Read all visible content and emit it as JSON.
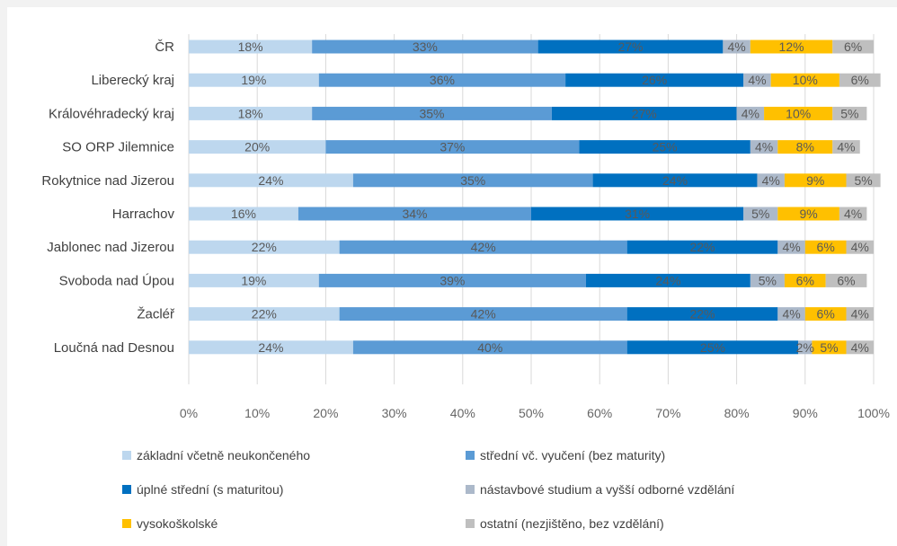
{
  "chart_data": {
    "type": "bar",
    "orientation": "horizontal",
    "stacked": true,
    "categories": [
      "ČR",
      "Liberecký kraj",
      "Královéhradecký kraj",
      "SO ORP Jilemnice",
      "Rokytnice nad Jizerou",
      "Harrachov",
      "Jablonec nad Jizerou",
      "Svoboda nad Úpou",
      "Žacléř",
      "Loučná nad Desnou"
    ],
    "series": [
      {
        "name": "základní včetně neukončeného",
        "color": "#bdd7ee",
        "values": [
          18,
          19,
          18,
          20,
          24,
          16,
          22,
          19,
          22,
          24
        ]
      },
      {
        "name": "střední vč. vyučení (bez maturity)",
        "color": "#5b9bd5",
        "values": [
          33,
          36,
          35,
          37,
          35,
          34,
          42,
          39,
          42,
          40
        ]
      },
      {
        "name": "úplné střední (s maturitou)",
        "color": "#0070c0",
        "values": [
          27,
          26,
          27,
          25,
          24,
          31,
          22,
          24,
          22,
          25
        ]
      },
      {
        "name": "nástavbové studium a vyšší odborné vzdělání",
        "color": "#acb9ca",
        "values": [
          4,
          4,
          4,
          4,
          4,
          5,
          4,
          5,
          4,
          2
        ]
      },
      {
        "name": "vysokoškolské",
        "color": "#ffc000",
        "values": [
          12,
          10,
          10,
          8,
          9,
          9,
          6,
          6,
          6,
          5
        ]
      },
      {
        "name": "ostatní (nezjištěno, bez vzdělání)",
        "color": "#bfbfbf",
        "values": [
          6,
          6,
          5,
          4,
          5,
          4,
          4,
          6,
          4,
          4
        ]
      }
    ],
    "xlim": [
      0,
      100
    ],
    "x_ticks": [
      "0%",
      "10%",
      "20%",
      "30%",
      "40%",
      "50%",
      "60%",
      "70%",
      "80%",
      "90%",
      "100%"
    ],
    "value_suffix": "%",
    "grid": "vertical",
    "legend_position": "bottom"
  }
}
